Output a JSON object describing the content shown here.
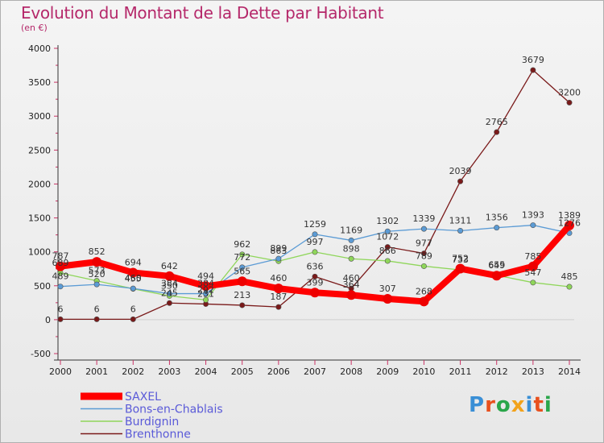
{
  "title": "Evolution du Montant de la Dette par Habitant",
  "subtitle": "(en €)",
  "logo_text": "Proxiti",
  "logo_colors": [
    "#3a8fd6",
    "#e8501e",
    "#2aa64a",
    "#f2a21b",
    "#3a8fd6",
    "#e8501e",
    "#2aa64a"
  ],
  "chart_data": {
    "type": "line",
    "title": "Evolution du Montant de la Dette par Habitant",
    "ylabel": "(en €)",
    "xlabel": "",
    "ylim": [
      -500,
      4000
    ],
    "y_ticks": [
      -500,
      0,
      500,
      1000,
      1500,
      2000,
      2500,
      3000,
      3500,
      4000
    ],
    "x": [
      "2000",
      "2001",
      "2002",
      "2003",
      "2004",
      "2005",
      "2006",
      "2007",
      "2008",
      "2009",
      "2010",
      "2011",
      "2012",
      "2013",
      "2014"
    ],
    "legend_position": "bottom-left",
    "series": [
      {
        "name": "Brenthonne",
        "color": "#7a1a1a",
        "values": [
          6,
          6,
          6,
          245,
          231,
          213,
          187,
          636,
          460,
          1072,
          977,
          2039,
          2765,
          3679,
          3200
        ]
      },
      {
        "name": "Burdignin",
        "color": "#8fd65a",
        "values": [
          689,
          573,
          455,
          350,
          292,
          962,
          863,
          997,
          898,
          866,
          789,
          733,
          655,
          547,
          485
        ]
      },
      {
        "name": "Bons-en-Chablais",
        "color": "#5b9bd5",
        "values": [
          489,
          520,
          460,
          384,
          384,
          772,
          899,
          1259,
          1169,
          1302,
          1339,
          1311,
          1356,
          1393,
          1276
        ]
      },
      {
        "name": "SAXEL",
        "color": "#ff0000",
        "values": [
          787,
          852,
          694,
          642,
          494,
          565,
          460,
          399,
          364,
          307,
          268,
          752,
          649,
          785,
          1389
        ]
      }
    ],
    "legend": [
      "SAXEL",
      "Bons-en-Chablais",
      "Burdignin",
      "Brenthonne"
    ]
  }
}
